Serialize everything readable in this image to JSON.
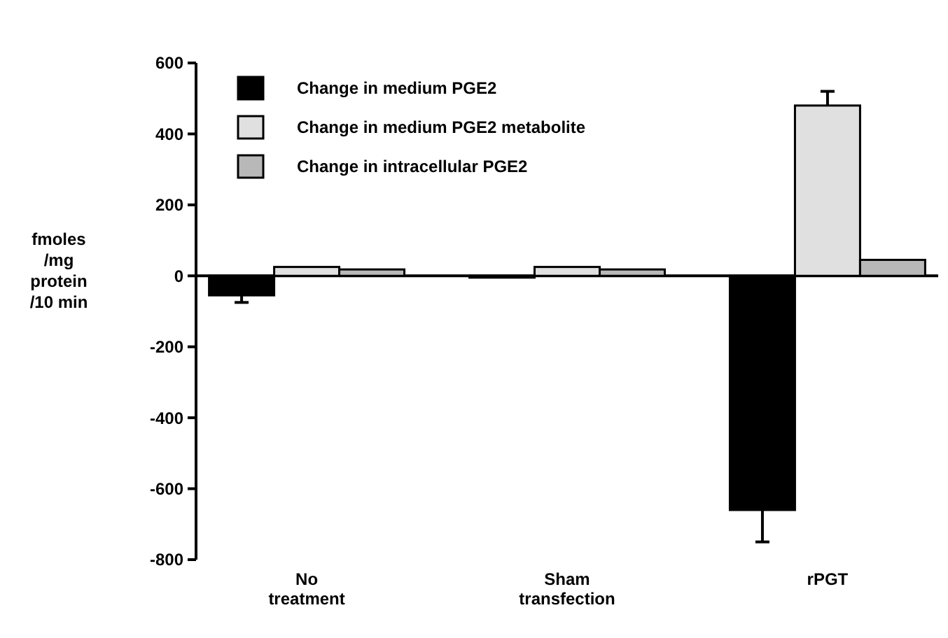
{
  "chart_data": {
    "type": "bar",
    "ylabel": "fmoles\n/mg\nprotein\n/10 min",
    "categories": [
      "No\ntreatment",
      "Sham\ntransfection",
      "rPGT"
    ],
    "series": [
      {
        "name": "Change in medium PGE2",
        "color": "#000000",
        "values": [
          -55,
          -5,
          -660
        ],
        "errors": [
          20,
          null,
          90
        ]
      },
      {
        "name": "Change in medium PGE2 metabolite",
        "color": "#e0e0e0",
        "values": [
          25,
          25,
          480
        ],
        "errors": [
          null,
          null,
          40
        ]
      },
      {
        "name": "Change in intracellular PGE2",
        "color": "#b8b8b8",
        "values": [
          18,
          18,
          45
        ]
      }
    ],
    "ylim": [
      -800,
      600
    ],
    "yticks": [
      -800,
      -600,
      -400,
      -200,
      0,
      200,
      400,
      600
    ],
    "legend": "top left"
  }
}
